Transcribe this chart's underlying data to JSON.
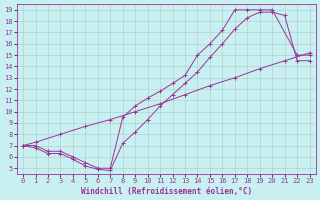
{
  "xlabel": "Windchill (Refroidissement éolien,°C)",
  "bg_color": "#c8f0f0",
  "line_color": "#993399",
  "grid_color": "#b0c8c8",
  "xlim": [
    -0.5,
    23.5
  ],
  "ylim": [
    4.5,
    19.5
  ],
  "xticks": [
    0,
    1,
    2,
    3,
    4,
    5,
    6,
    7,
    8,
    9,
    10,
    11,
    12,
    13,
    14,
    15,
    16,
    17,
    18,
    19,
    20,
    21,
    22,
    23
  ],
  "yticks": [
    5,
    6,
    7,
    8,
    9,
    10,
    11,
    12,
    13,
    14,
    15,
    16,
    17,
    18,
    19
  ],
  "line1_x": [
    0,
    1,
    2,
    3,
    4,
    5,
    6,
    7,
    8,
    9,
    10,
    11,
    12,
    13,
    14,
    15,
    16,
    17,
    18,
    19,
    20,
    22,
    23
  ],
  "line1_y": [
    7,
    7,
    6.5,
    6.5,
    6,
    5.5,
    5,
    5,
    9.5,
    10.5,
    11.2,
    11.8,
    12.5,
    13.2,
    15,
    16,
    17.2,
    19,
    19,
    19,
    19,
    15,
    15
  ],
  "line2_x": [
    0,
    1,
    2,
    3,
    4,
    5,
    6,
    7,
    8,
    9,
    10,
    11,
    12,
    13,
    14,
    15,
    16,
    17,
    18,
    19,
    20,
    21,
    22,
    23
  ],
  "line2_y": [
    7,
    6.8,
    6.3,
    6.3,
    5.8,
    5.2,
    4.9,
    4.8,
    7.2,
    8.2,
    9.3,
    10.5,
    11.5,
    12.5,
    13.5,
    14.8,
    16,
    17.3,
    18.3,
    18.8,
    18.8,
    18.5,
    14.5,
    14.5
  ],
  "line3_x": [
    0,
    1,
    3,
    5,
    7,
    9,
    11,
    13,
    15,
    17,
    19,
    21,
    23
  ],
  "line3_y": [
    7,
    7.3,
    8.0,
    8.7,
    9.3,
    10.0,
    10.7,
    11.5,
    12.3,
    13.0,
    13.8,
    14.5,
    15.2
  ]
}
